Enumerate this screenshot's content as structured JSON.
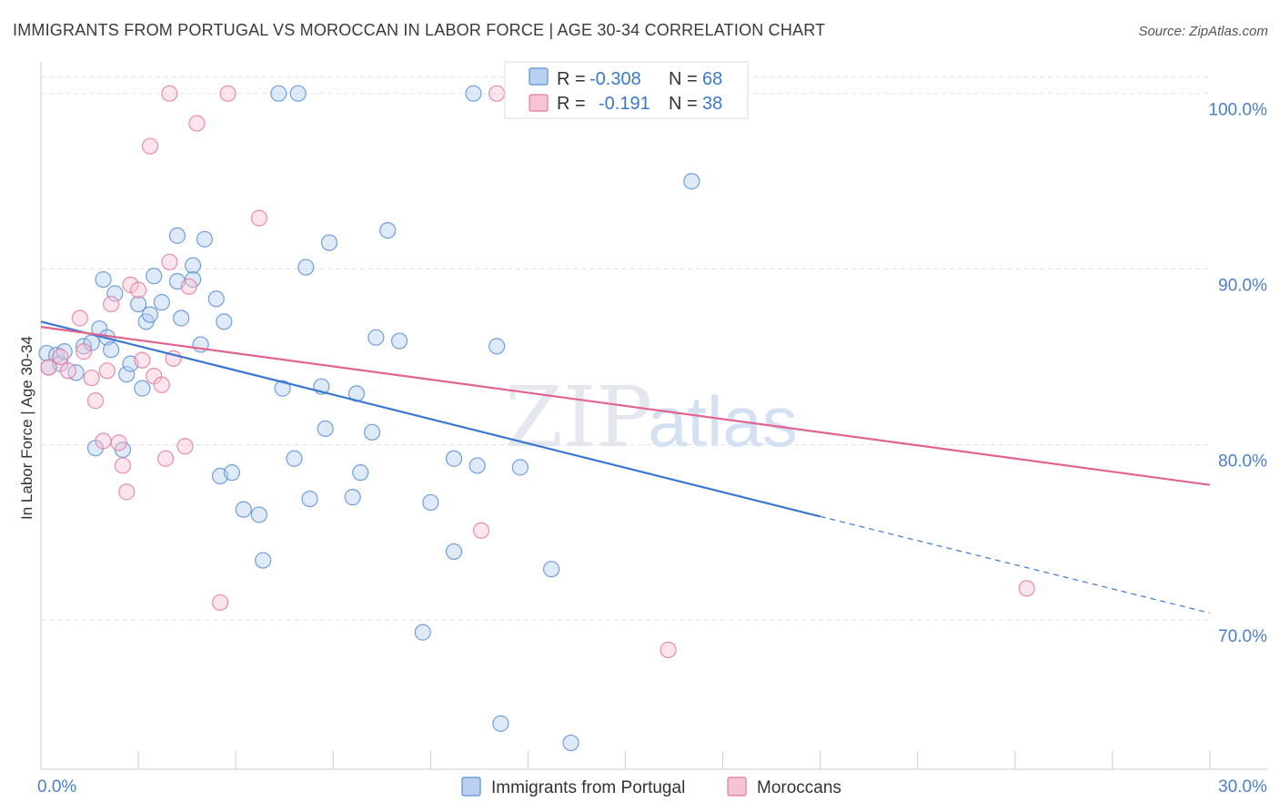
{
  "title": "IMMIGRANTS FROM PORTUGAL VS MOROCCAN IN LABOR FORCE | AGE 30-34 CORRELATION CHART",
  "source": "Source: ZipAtlas.com",
  "watermark": {
    "zip": "ZIP",
    "atlas": "atlas"
  },
  "colors": {
    "blue": "#5b8fd6",
    "blue_fill": "#b9d0f0",
    "blue_line": "#3a78d0",
    "pink": "#e47aa0",
    "pink_fill": "#f6c3d4",
    "pink_line": "#e0648f",
    "tick_text": "#4a7fc9",
    "grid": "#dde3ea"
  },
  "stats": [
    {
      "r_label": "R = ",
      "r_value": "-0.308",
      "n_label": "N = ",
      "n_value": "68",
      "series": "blue"
    },
    {
      "r_label": "R = ",
      "r_value": "-0.191",
      "n_label": "N = ",
      "n_value": "38",
      "series": "pink"
    }
  ],
  "chart_data": {
    "type": "scatter",
    "title": "IMMIGRANTS FROM PORTUGAL VS MOROCCAN IN LABOR FORCE | AGE 30-34 CORRELATION CHART",
    "xlabel": "",
    "ylabel": "In Labor Force | Age 30-34",
    "xlim": [
      0,
      30
    ],
    "ylim": [
      61.5,
      101.8
    ],
    "x_tick_labels": [
      {
        "value": 0,
        "label": "0.0%"
      },
      {
        "value": 30,
        "label": "30.0%"
      }
    ],
    "y_tick_labels": [
      {
        "value": 70,
        "label": "70.0%"
      },
      {
        "value": 80,
        "label": "80.0%"
      },
      {
        "value": 90,
        "label": "90.0%"
      },
      {
        "value": 100,
        "label": "100.0%"
      }
    ],
    "grid": true,
    "legend_position": "bottom-center",
    "series": [
      {
        "name": "Immigrants from Portugal",
        "color": "blue",
        "trend": {
          "x0": 0,
          "y0": 87.0,
          "x1": 20.0,
          "y1": 75.9,
          "dash_to_x": 30.0,
          "dash_to_y": 70.4
        },
        "points": [
          [
            0.15,
            85.2
          ],
          [
            0.2,
            84.4
          ],
          [
            0.4,
            85.1
          ],
          [
            0.5,
            84.6
          ],
          [
            0.6,
            85.3
          ],
          [
            0.9,
            84.1
          ],
          [
            1.1,
            85.6
          ],
          [
            1.3,
            85.8
          ],
          [
            1.4,
            79.8
          ],
          [
            1.5,
            86.6
          ],
          [
            1.6,
            89.4
          ],
          [
            1.7,
            86.1
          ],
          [
            1.8,
            85.4
          ],
          [
            1.9,
            88.6
          ],
          [
            2.1,
            79.7
          ],
          [
            2.2,
            84.0
          ],
          [
            2.3,
            84.6
          ],
          [
            2.5,
            88.0
          ],
          [
            2.6,
            83.2
          ],
          [
            2.7,
            87.0
          ],
          [
            2.8,
            87.4
          ],
          [
            2.9,
            89.6
          ],
          [
            3.1,
            88.1
          ],
          [
            3.5,
            91.9
          ],
          [
            3.5,
            89.3
          ],
          [
            3.6,
            87.2
          ],
          [
            3.9,
            90.2
          ],
          [
            3.9,
            89.4
          ],
          [
            4.1,
            85.7
          ],
          [
            4.2,
            91.7
          ],
          [
            4.5,
            88.3
          ],
          [
            4.6,
            78.2
          ],
          [
            4.7,
            87.0
          ],
          [
            4.9,
            78.4
          ],
          [
            5.2,
            76.3
          ],
          [
            5.6,
            76.0
          ],
          [
            5.7,
            73.4
          ],
          [
            6.1,
            100.0
          ],
          [
            6.2,
            83.2
          ],
          [
            6.5,
            79.2
          ],
          [
            6.6,
            100.0
          ],
          [
            6.8,
            90.1
          ],
          [
            6.9,
            76.9
          ],
          [
            7.2,
            83.3
          ],
          [
            7.3,
            80.9
          ],
          [
            7.4,
            91.5
          ],
          [
            8.0,
            77.0
          ],
          [
            8.1,
            82.9
          ],
          [
            8.2,
            78.4
          ],
          [
            8.5,
            80.7
          ],
          [
            8.6,
            86.1
          ],
          [
            8.9,
            92.2
          ],
          [
            9.2,
            85.9
          ],
          [
            9.8,
            69.3
          ],
          [
            10.0,
            76.7
          ],
          [
            10.6,
            79.2
          ],
          [
            10.6,
            73.9
          ],
          [
            11.1,
            100.0
          ],
          [
            11.2,
            78.8
          ],
          [
            11.7,
            85.6
          ],
          [
            11.8,
            64.1
          ],
          [
            12.3,
            78.7
          ],
          [
            13.1,
            72.9
          ],
          [
            13.6,
            63.0
          ],
          [
            16.7,
            95.0
          ]
        ]
      },
      {
        "name": "Moroccans",
        "color": "pink",
        "trend": {
          "x0": 0,
          "y0": 86.7,
          "x1": 30.0,
          "y1": 77.7
        },
        "points": [
          [
            0.2,
            84.4
          ],
          [
            0.5,
            85.0
          ],
          [
            0.7,
            84.2
          ],
          [
            1.0,
            87.2
          ],
          [
            1.1,
            85.3
          ],
          [
            1.3,
            83.8
          ],
          [
            1.4,
            82.5
          ],
          [
            1.6,
            80.2
          ],
          [
            1.7,
            84.2
          ],
          [
            1.8,
            88.0
          ],
          [
            2.0,
            80.1
          ],
          [
            2.1,
            78.8
          ],
          [
            2.2,
            77.3
          ],
          [
            2.3,
            89.1
          ],
          [
            2.5,
            88.8
          ],
          [
            2.6,
            84.8
          ],
          [
            2.8,
            97.0
          ],
          [
            2.9,
            83.9
          ],
          [
            3.1,
            83.4
          ],
          [
            3.2,
            79.2
          ],
          [
            3.3,
            100.0
          ],
          [
            3.3,
            90.4
          ],
          [
            3.4,
            84.9
          ],
          [
            3.7,
            79.9
          ],
          [
            3.8,
            89.0
          ],
          [
            4.0,
            98.3
          ],
          [
            4.6,
            71.0
          ],
          [
            4.8,
            100.0
          ],
          [
            5.6,
            92.9
          ],
          [
            11.3,
            75.1
          ],
          [
            11.7,
            100.0
          ],
          [
            16.1,
            68.3
          ],
          [
            25.3,
            71.8
          ]
        ]
      }
    ]
  }
}
